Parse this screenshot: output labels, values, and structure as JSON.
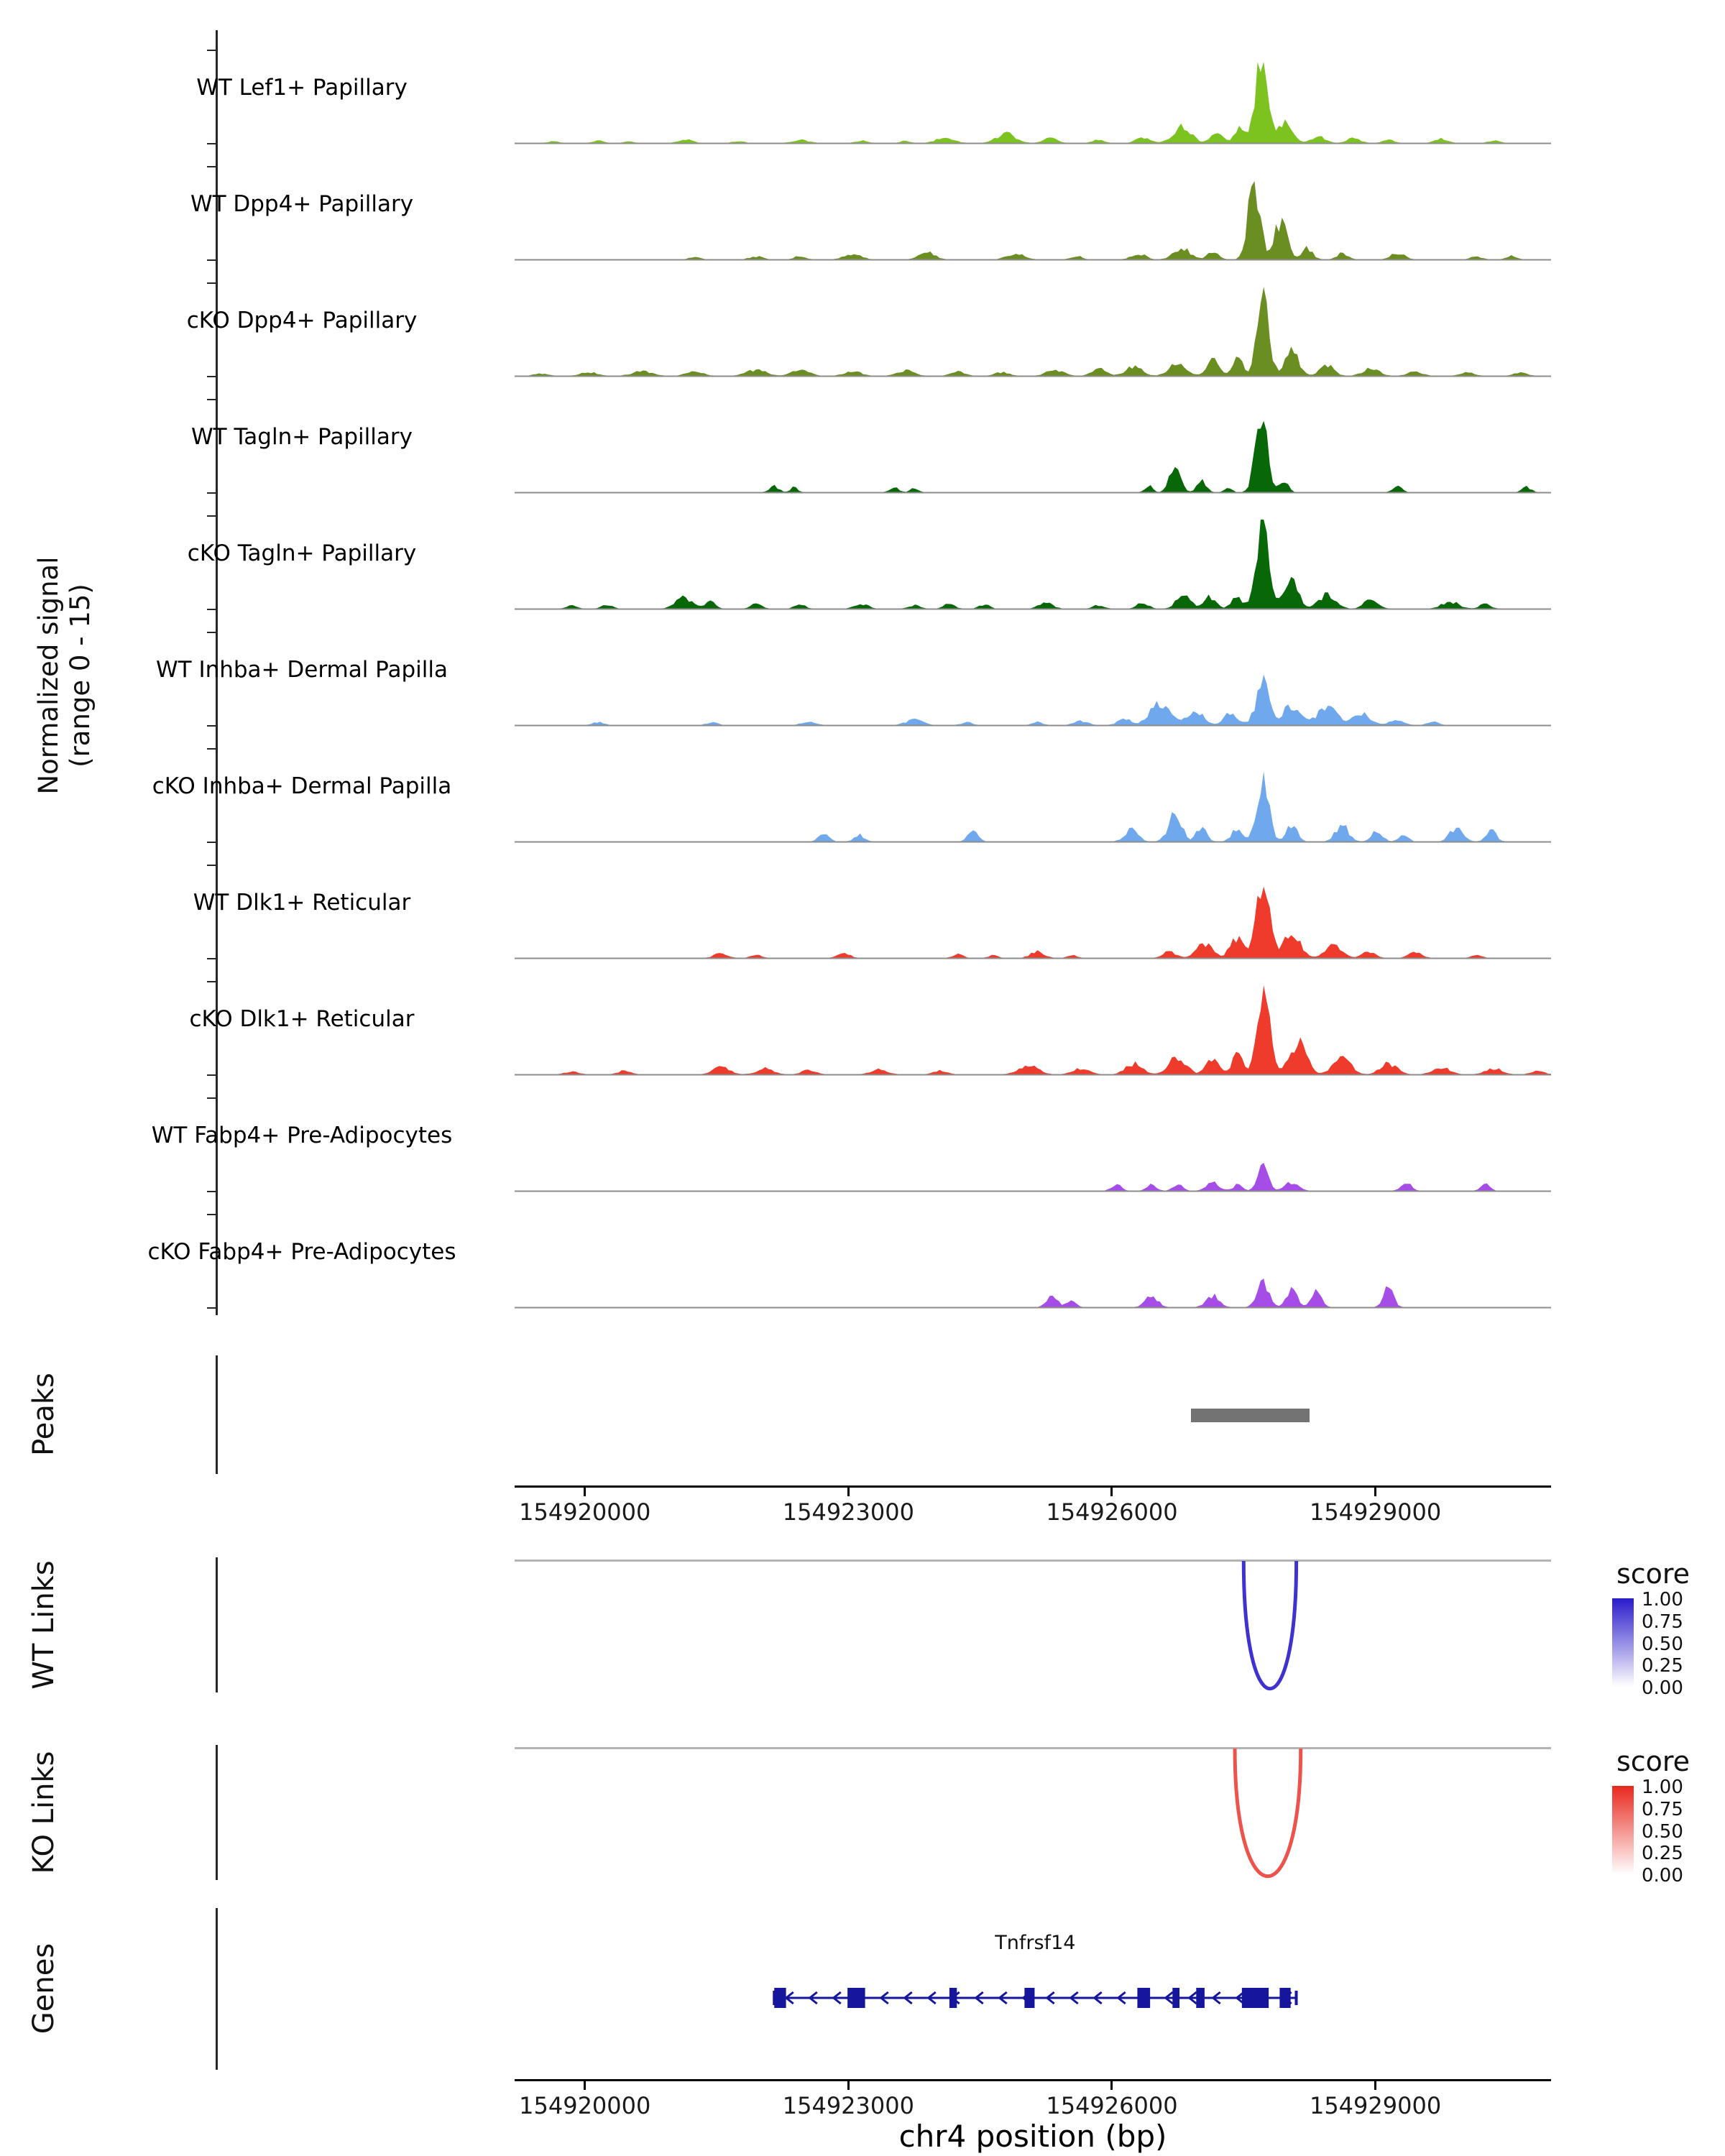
{
  "sections": {
    "signal": {
      "label_line1": "Normalized signal",
      "label_line2": "(range 0 - 15)"
    },
    "peaks": {
      "label": "Peaks"
    },
    "wt_links": {
      "label": "WT Links",
      "legend_title": "score"
    },
    "ko_links": {
      "label": "KO Links",
      "legend_title": "score"
    },
    "genes": {
      "label": "Genes"
    }
  },
  "xaxis": {
    "title": "chr4 position (bp)",
    "tick_labels": [
      "154920000",
      "154923000",
      "154926000",
      "154929000"
    ]
  },
  "chart_data": {
    "type": "area",
    "xlabel": "chr4 position (bp)",
    "ylabel": "Normalized signal (range 0 - 15)",
    "region": {
      "start": 154919200,
      "end": 154931000
    },
    "x_ticks": [
      154920000,
      154923000,
      154926000,
      154929000
    ],
    "y_range_per_track": [
      0,
      15
    ],
    "grid": false,
    "tracks": [
      {
        "name": "WT Lef1+ Papillary",
        "color": "#7CC31F",
        "peaks": [
          [
            154919650,
            0.3,
            160
          ],
          [
            154920150,
            0.4,
            160
          ],
          [
            154920500,
            0.3,
            140
          ],
          [
            154921150,
            0.6,
            200
          ],
          [
            154921750,
            0.35,
            160
          ],
          [
            154922450,
            0.5,
            240
          ],
          [
            154923150,
            0.4,
            160
          ],
          [
            154923650,
            0.35,
            140
          ],
          [
            154924100,
            1.0,
            240
          ],
          [
            154924800,
            1.5,
            280
          ],
          [
            154925300,
            0.8,
            200
          ],
          [
            154925850,
            0.6,
            160
          ],
          [
            154926350,
            0.9,
            200
          ],
          [
            154926800,
            2.9,
            260
          ],
          [
            154927200,
            1.6,
            180
          ],
          [
            154927450,
            2.4,
            140
          ],
          [
            154927700,
            13.8,
            190
          ],
          [
            154927980,
            3.8,
            190
          ],
          [
            154928350,
            1.1,
            200
          ],
          [
            154928750,
            0.8,
            190
          ],
          [
            154929150,
            0.6,
            160
          ],
          [
            154929750,
            0.7,
            200
          ],
          [
            154930350,
            0.4,
            160
          ]
        ]
      },
      {
        "name": "WT Dpp4+ Papillary",
        "color": "#6B8E23",
        "peaks": [
          [
            154921250,
            0.4,
            160
          ],
          [
            154921950,
            0.5,
            190
          ],
          [
            154922450,
            0.6,
            160
          ],
          [
            154923050,
            0.9,
            240
          ],
          [
            154923900,
            1.2,
            220
          ],
          [
            154924900,
            1.0,
            240
          ],
          [
            154925600,
            0.6,
            160
          ],
          [
            154926300,
            1.0,
            200
          ],
          [
            154926800,
            1.8,
            240
          ],
          [
            154927150,
            1.3,
            160
          ],
          [
            154927620,
            13.2,
            170
          ],
          [
            154927920,
            6.3,
            190
          ],
          [
            154928220,
            1.9,
            160
          ],
          [
            154928620,
            1.0,
            160
          ],
          [
            154929250,
            1.1,
            200
          ],
          [
            154930150,
            0.5,
            160
          ],
          [
            154930550,
            0.6,
            150
          ]
        ]
      },
      {
        "name": "cKO Dpp4+ Papillary",
        "color": "#6B8E23",
        "peaks": [
          [
            154919500,
            0.4,
            200
          ],
          [
            154920050,
            0.6,
            240
          ],
          [
            154920650,
            0.8,
            280
          ],
          [
            154921250,
            0.7,
            240
          ],
          [
            154921950,
            1.0,
            280
          ],
          [
            154922450,
            1.2,
            240
          ],
          [
            154923050,
            0.8,
            240
          ],
          [
            154923650,
            0.9,
            240
          ],
          [
            154924250,
            0.8,
            200
          ],
          [
            154924750,
            0.6,
            200
          ],
          [
            154925350,
            1.0,
            240
          ],
          [
            154925850,
            1.2,
            200
          ],
          [
            154926250,
            1.5,
            240
          ],
          [
            154926750,
            2.2,
            240
          ],
          [
            154927150,
            2.5,
            190
          ],
          [
            154927430,
            3.0,
            150
          ],
          [
            154927720,
            12.8,
            175
          ],
          [
            154928050,
            4.3,
            190
          ],
          [
            154928450,
            1.7,
            200
          ],
          [
            154928950,
            1.2,
            240
          ],
          [
            154929450,
            0.8,
            200
          ],
          [
            154930050,
            0.6,
            200
          ],
          [
            154930650,
            0.5,
            200
          ]
        ]
      },
      {
        "name": "WT Tagln+ Papillary",
        "color": "#086808",
        "peaks": [
          [
            154922150,
            1.0,
            140
          ],
          [
            154922380,
            0.8,
            110
          ],
          [
            154923520,
            0.9,
            130
          ],
          [
            154923750,
            0.7,
            110
          ],
          [
            154926420,
            1.2,
            110
          ],
          [
            154926720,
            5.4,
            150
          ],
          [
            154927020,
            2.0,
            130
          ],
          [
            154927320,
            0.8,
            110
          ],
          [
            154927700,
            14.3,
            170
          ],
          [
            154927960,
            2.0,
            120
          ],
          [
            154929250,
            1.0,
            130
          ],
          [
            154930720,
            0.9,
            130
          ]
        ]
      },
      {
        "name": "cKO Tagln+ Papillary",
        "color": "#086808",
        "peaks": [
          [
            154919850,
            0.5,
            160
          ],
          [
            154920250,
            0.6,
            160
          ],
          [
            154921120,
            1.8,
            240
          ],
          [
            154921420,
            1.2,
            150
          ],
          [
            154921950,
            0.8,
            160
          ],
          [
            154922450,
            0.7,
            160
          ],
          [
            154923150,
            0.8,
            200
          ],
          [
            154923750,
            0.6,
            160
          ],
          [
            154924150,
            0.9,
            150
          ],
          [
            154924550,
            0.7,
            150
          ],
          [
            154925250,
            1.0,
            200
          ],
          [
            154925850,
            0.6,
            160
          ],
          [
            154926350,
            1.0,
            160
          ],
          [
            154926820,
            2.8,
            200
          ],
          [
            154927120,
            2.0,
            160
          ],
          [
            154927420,
            2.2,
            150
          ],
          [
            154927720,
            13.9,
            190
          ],
          [
            154928040,
            4.8,
            200
          ],
          [
            154928450,
            2.4,
            240
          ],
          [
            154928950,
            1.5,
            200
          ],
          [
            154929850,
            1.2,
            240
          ],
          [
            154930250,
            0.8,
            160
          ]
        ]
      },
      {
        "name": "WT Inhba+ Dermal Papilla",
        "color": "#6FA8ED",
        "peaks": [
          [
            154920150,
            0.5,
            160
          ],
          [
            154921450,
            0.5,
            160
          ],
          [
            154922550,
            0.6,
            200
          ],
          [
            154923750,
            0.9,
            240
          ],
          [
            154924350,
            0.5,
            160
          ],
          [
            154925150,
            0.5,
            160
          ],
          [
            154925650,
            0.7,
            200
          ],
          [
            154926150,
            1.1,
            200
          ],
          [
            154926550,
            3.7,
            280
          ],
          [
            154926950,
            2.5,
            240
          ],
          [
            154927350,
            2.0,
            200
          ],
          [
            154927720,
            6.9,
            200
          ],
          [
            154928050,
            3.4,
            240
          ],
          [
            154928450,
            3.0,
            280
          ],
          [
            154928850,
            2.0,
            240
          ],
          [
            154929250,
            1.0,
            200
          ],
          [
            154929650,
            0.6,
            160
          ]
        ]
      },
      {
        "name": "cKO Inhba+ Dermal Papilla",
        "color": "#6FA8ED",
        "peaks": [
          [
            154922720,
            1.5,
            140
          ],
          [
            154923120,
            1.2,
            140
          ],
          [
            154924420,
            1.8,
            140
          ],
          [
            154926220,
            2.0,
            190
          ],
          [
            154926720,
            4.4,
            190
          ],
          [
            154927020,
            2.4,
            150
          ],
          [
            154927420,
            2.0,
            150
          ],
          [
            154927720,
            9.8,
            175
          ],
          [
            154928050,
            2.9,
            150
          ],
          [
            154928620,
            2.7,
            190
          ],
          [
            154929020,
            1.8,
            150
          ],
          [
            154929320,
            1.2,
            130
          ],
          [
            154929920,
            2.2,
            190
          ],
          [
            154930320,
            1.8,
            150
          ]
        ]
      },
      {
        "name": "WT Dlk1+ Reticular",
        "color": "#EF3B2C",
        "peaks": [
          [
            154921550,
            0.8,
            190
          ],
          [
            154921950,
            0.5,
            150
          ],
          [
            154922950,
            0.7,
            190
          ],
          [
            154924250,
            0.6,
            150
          ],
          [
            154924650,
            0.5,
            130
          ],
          [
            154925150,
            1.2,
            190
          ],
          [
            154925550,
            0.5,
            130
          ],
          [
            154926650,
            1.0,
            190
          ],
          [
            154927050,
            2.4,
            240
          ],
          [
            154927420,
            3.4,
            190
          ],
          [
            154927720,
            11.8,
            190
          ],
          [
            154928050,
            4.4,
            240
          ],
          [
            154928520,
            2.0,
            240
          ],
          [
            154928920,
            1.0,
            190
          ],
          [
            154929450,
            1.0,
            190
          ],
          [
            154930150,
            0.5,
            150
          ]
        ]
      },
      {
        "name": "cKO Dlk1+ Reticular",
        "color": "#EF3B2C",
        "peaks": [
          [
            154919850,
            0.5,
            200
          ],
          [
            154920450,
            0.6,
            200
          ],
          [
            154921550,
            1.2,
            240
          ],
          [
            154922050,
            1.0,
            240
          ],
          [
            154922550,
            0.7,
            200
          ],
          [
            154923350,
            0.8,
            240
          ],
          [
            154924050,
            0.6,
            200
          ],
          [
            154925050,
            1.5,
            280
          ],
          [
            154925650,
            1.0,
            240
          ],
          [
            154926250,
            1.8,
            240
          ],
          [
            154926750,
            3.0,
            240
          ],
          [
            154927150,
            2.5,
            190
          ],
          [
            154927430,
            3.4,
            150
          ],
          [
            154927730,
            12.8,
            190
          ],
          [
            154928120,
            5.4,
            240
          ],
          [
            154928620,
            3.0,
            240
          ],
          [
            154929150,
            1.8,
            240
          ],
          [
            154929750,
            1.2,
            240
          ],
          [
            154930350,
            1.0,
            240
          ],
          [
            154930850,
            0.6,
            190
          ]
        ]
      },
      {
        "name": "WT Fabp4+ Pre-Adipocytes",
        "color": "#A64DE8",
        "peaks": [
          [
            154926050,
            1.2,
            140
          ],
          [
            154926450,
            1.0,
            140
          ],
          [
            154926750,
            1.2,
            140
          ],
          [
            154927150,
            1.3,
            190
          ],
          [
            154927430,
            1.0,
            130
          ],
          [
            154927720,
            4.4,
            150
          ],
          [
            154928050,
            1.5,
            190
          ],
          [
            154929350,
            1.5,
            150
          ],
          [
            154930250,
            1.2,
            130
          ]
        ]
      },
      {
        "name": "cKO Fabp4+ Pre-Adipocytes",
        "color": "#A64DE8",
        "peaks": [
          [
            154925320,
            2.2,
            150
          ],
          [
            154925540,
            1.5,
            120
          ],
          [
            154926450,
            1.8,
            190
          ],
          [
            154927150,
            2.0,
            190
          ],
          [
            154927720,
            3.9,
            170
          ],
          [
            154928050,
            2.9,
            150
          ],
          [
            154928330,
            2.5,
            150
          ],
          [
            154929150,
            3.8,
            140
          ]
        ]
      }
    ],
    "peak_regions": [
      {
        "start": 154926900,
        "end": 154928250,
        "color": "#737373"
      }
    ],
    "links": [
      {
        "group": "WT Links",
        "start": 154927500,
        "end": 154928100,
        "score": 0.9,
        "base_color": "#2A1BCB"
      },
      {
        "group": "KO Links",
        "start": 154927400,
        "end": 154928150,
        "score": 0.8,
        "base_color": "#E8281E"
      }
    ],
    "link_legend": {
      "title": "score",
      "ticks": [
        "1.00",
        "0.75",
        "0.50",
        "0.25",
        "0.00"
      ]
    },
    "gene": {
      "name": "Tnfrsf14",
      "strand": "-",
      "start": 154922156,
      "end": 154928099,
      "color": "#16169C",
      "exons": [
        [
          154922156,
          154922290
        ],
        [
          154922990,
          154923190
        ],
        [
          154924150,
          154924235
        ],
        [
          154925005,
          154925120
        ],
        [
          154926290,
          154926435
        ],
        [
          154926690,
          154926770
        ],
        [
          154926960,
          154927055
        ],
        [
          154927480,
          154927785
        ],
        [
          154927910,
          154928035
        ]
      ]
    }
  }
}
